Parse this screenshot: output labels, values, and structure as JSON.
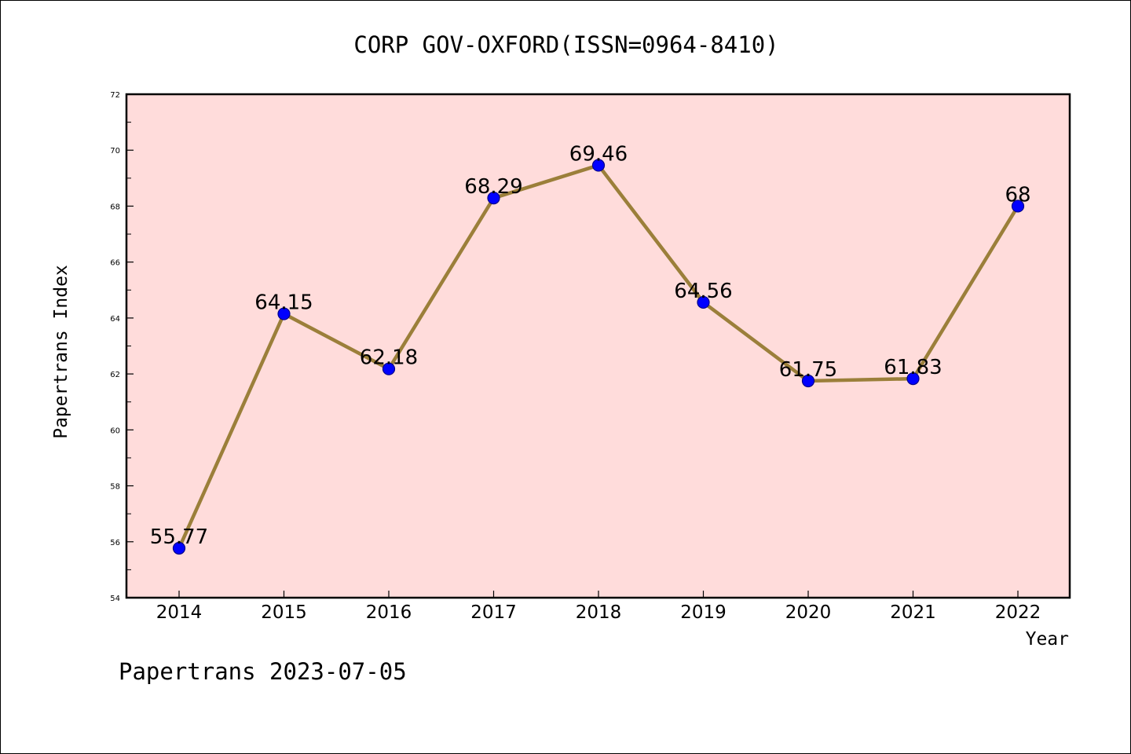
{
  "chart_data": {
    "type": "line",
    "title": "CORP GOV-OXFORD(ISSN=0964-8410)",
    "xlabel": "Year",
    "ylabel": "Papertrans Index",
    "footer": "Papertrans 2023-07-05",
    "categories": [
      "2014",
      "2015",
      "2016",
      "2017",
      "2018",
      "2019",
      "2020",
      "2021",
      "2022"
    ],
    "series": [
      {
        "values": [
          55.77,
          64.15,
          62.18,
          68.29,
          69.46,
          64.56,
          61.75,
          61.83,
          68
        ],
        "labels": [
          "55.77",
          "64.15",
          "62.18",
          "68.29",
          "69.46",
          "64.56",
          "61.75",
          "61.83",
          "68"
        ]
      }
    ],
    "ylim": [
      54,
      72
    ],
    "yticks": [
      "54",
      "56",
      "58",
      "60",
      "62",
      "64",
      "66",
      "68",
      "70",
      "72"
    ],
    "grid": false,
    "colors": {
      "plot_background": "#ffdcdb",
      "line": "#9b7f3a",
      "marker_fill": "#0000ff",
      "marker_edge": "#00008b",
      "axes": "#000000"
    }
  }
}
